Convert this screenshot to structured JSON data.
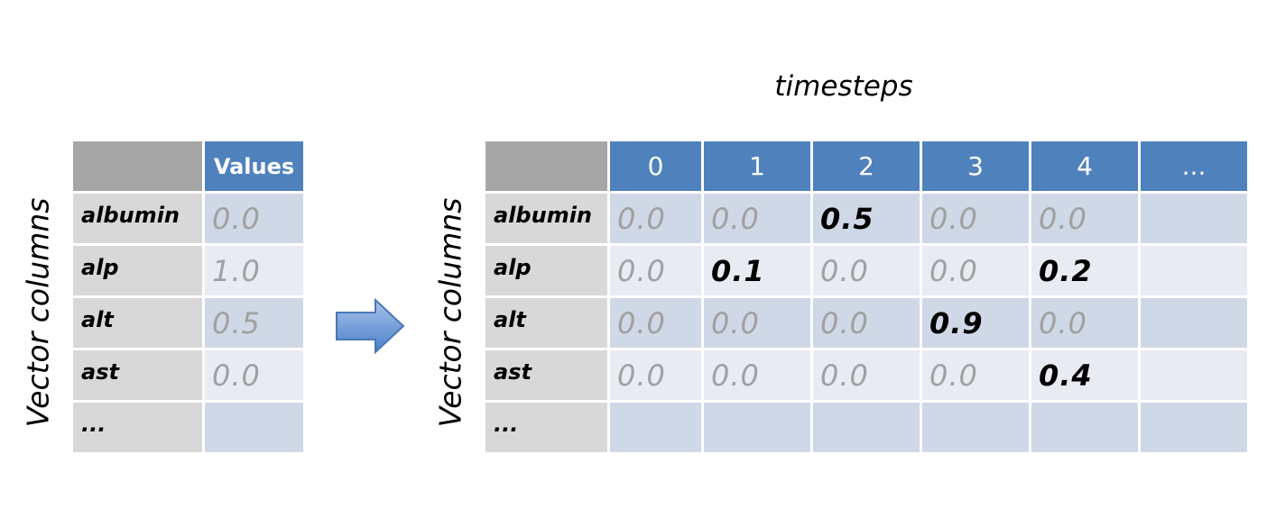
{
  "title": "timesteps",
  "left_axis_label": "Vector columns",
  "right_axis_label": "Vector columns",
  "left_table": {
    "header": "Values",
    "rows": [
      {
        "label": "albumin",
        "value": "0.0"
      },
      {
        "label": "alp",
        "value": "1.0"
      },
      {
        "label": "alt",
        "value": "0.5"
      },
      {
        "label": "ast",
        "value": "0.0"
      },
      {
        "label": "...",
        "value": ""
      }
    ]
  },
  "right_table": {
    "headers": [
      "0",
      "1",
      "2",
      "3",
      "4",
      "..."
    ],
    "rows": [
      {
        "label": "albumin",
        "values": [
          "0.0",
          "0.0",
          "0.5",
          "0.0",
          "0.0",
          ""
        ]
      },
      {
        "label": "alp",
        "values": [
          "0.0",
          "0.1",
          "0.0",
          "0.0",
          "0.2",
          ""
        ]
      },
      {
        "label": "alt",
        "values": [
          "0.0",
          "0.0",
          "0.0",
          "0.9",
          "0.0",
          ""
        ]
      },
      {
        "label": "ast",
        "values": [
          "0.0",
          "0.0",
          "0.0",
          "0.0",
          "0.4",
          ""
        ]
      },
      {
        "label": "...",
        "values": [
          "",
          "",
          "",
          "",
          "",
          ""
        ]
      }
    ]
  },
  "colors": {
    "header": "#4f81bd",
    "corner": "#a6a6a6",
    "label_cell": "#d8d8d8",
    "band_dark": "#cfd8e6",
    "band_light": "#e8ebf2",
    "arrow": "#4f81bd"
  },
  "icons": {
    "arrow": "right-arrow-icon"
  }
}
